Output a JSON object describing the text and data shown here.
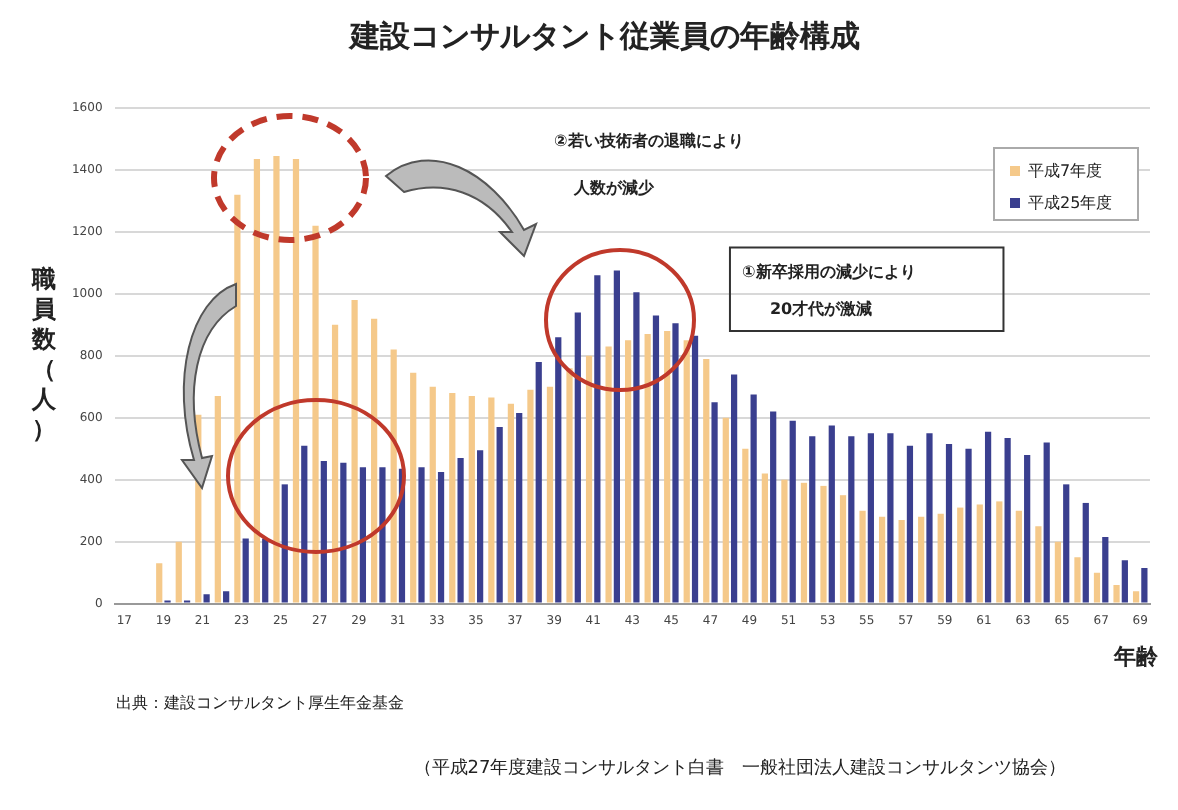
{
  "chart_data": {
    "type": "bar",
    "title": "建設コンサルタント従業員の年齢構成",
    "xlabel": "年齢",
    "ylabel": "職員数（人）",
    "categories": [
      "17",
      null,
      "19",
      null,
      "21",
      null,
      "23",
      null,
      "25",
      null,
      "27",
      null,
      "29",
      null,
      "31",
      null,
      "33",
      null,
      "35",
      null,
      "37",
      null,
      "39",
      null,
      "41",
      null,
      "43",
      null,
      "45",
      null,
      "47",
      null,
      "49",
      null,
      "51",
      null,
      "53",
      null,
      "55",
      null,
      "57",
      null,
      "59",
      null,
      "61",
      null,
      "63",
      null,
      "65",
      null,
      "67",
      null,
      "69"
    ],
    "series": [
      {
        "name": "平成7年度",
        "color": "#f5c98a",
        "values": [
          0,
          0,
          130,
          200,
          610,
          670,
          1320,
          1435,
          1445,
          1435,
          1220,
          900,
          980,
          920,
          820,
          745,
          700,
          680,
          670,
          665,
          645,
          690,
          700,
          760,
          800,
          830,
          850,
          870,
          880,
          850,
          790,
          600,
          500,
          420,
          400,
          390,
          380,
          350,
          300,
          280,
          270,
          280,
          290,
          310,
          320,
          330,
          300,
          250,
          200,
          150,
          100,
          60,
          40
        ]
      },
      {
        "name": "平成25年度",
        "color": "#3a3f8f",
        "values": [
          0,
          0,
          10,
          10,
          30,
          40,
          210,
          210,
          385,
          510,
          460,
          455,
          440,
          440,
          435,
          440,
          425,
          470,
          495,
          570,
          615,
          780,
          860,
          940,
          1060,
          1075,
          1005,
          930,
          905,
          865,
          650,
          740,
          675,
          620,
          590,
          540,
          575,
          540,
          550,
          550,
          510,
          550,
          515,
          500,
          555,
          535,
          480,
          520,
          385,
          325,
          215,
          140,
          115
        ]
      }
    ],
    "ylim": [
      0,
      1600
    ],
    "yticks": [
      0,
      200,
      400,
      600,
      800,
      1000,
      1200,
      1400,
      1600
    ],
    "grid": "y",
    "legend": "top right",
    "annotations": [
      "②若い技術者の退職により",
      "人数が減少",
      "①新卒採用の減少により",
      "20才代が激減",
      "出典：建設コンサルタント厚生年金基金",
      "（平成27年度建設コンサルタント白書　一般社団法人建設コンサルタンツ協会）"
    ]
  }
}
